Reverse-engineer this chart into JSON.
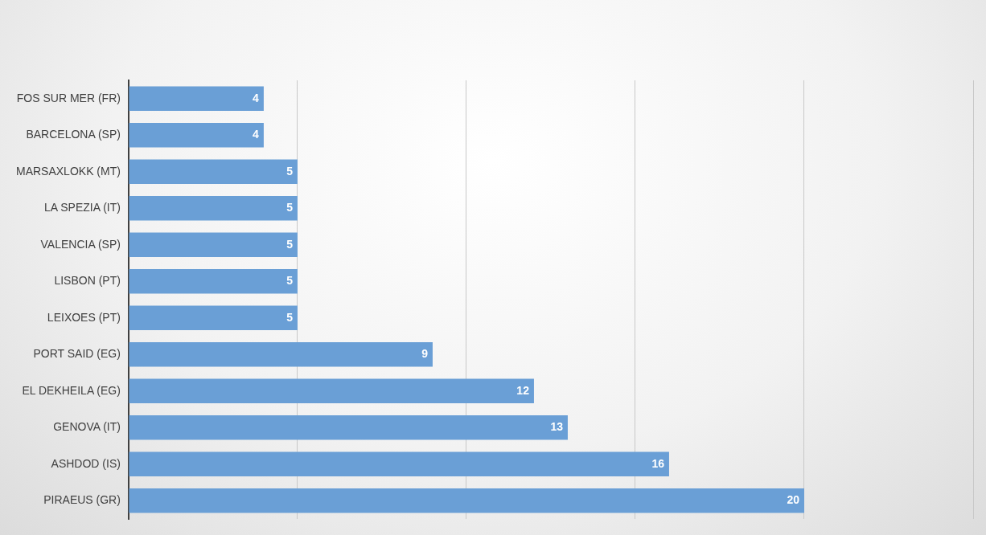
{
  "chart_data": {
    "type": "bar",
    "orientation": "horizontal",
    "categories": [
      "FOS SUR MER (FR)",
      "BARCELONA (SP)",
      "MARSAXLOKK (MT)",
      "LA SPEZIA (IT)",
      "VALENCIA (SP)",
      "LISBON (PT)",
      "LEIXOES (PT)",
      "PORT SAID (EG)",
      "EL DEKHEILA (EG)",
      "GENOVA (IT)",
      "ASHDOD (IS)",
      "PIRAEUS (GR)"
    ],
    "values": [
      4,
      4,
      5,
      5,
      5,
      5,
      5,
      9,
      12,
      13,
      16,
      20
    ],
    "color": "#6a9fd6",
    "xlim": [
      0,
      25
    ],
    "xticks": [
      {
        "value": 0,
        "label": null
      },
      {
        "value": 5,
        "label": null
      },
      {
        "value": 10,
        "label": null
      },
      {
        "value": 15,
        "label": null
      },
      {
        "value": 20,
        "label": null
      },
      {
        "value": 25,
        "label": null
      }
    ],
    "grid": "x",
    "tick_labels": "y",
    "data_labels": true,
    "legend": false
  }
}
